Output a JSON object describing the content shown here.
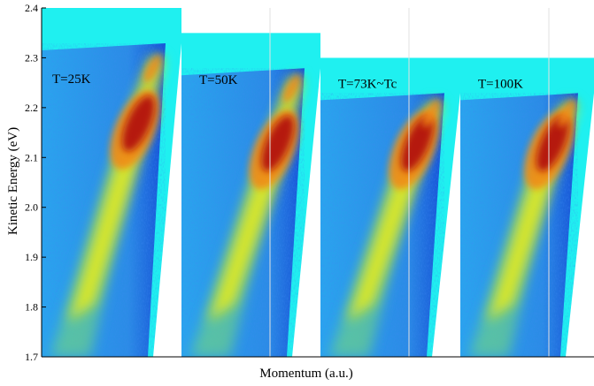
{
  "chart_data": {
    "type": "heatmap",
    "title": "",
    "xlabel": "Momentum (a.u.)",
    "ylabel": "Kinetic Energy (eV)",
    "ylim": [
      1.7,
      2.4
    ],
    "yticks": [
      "1.7",
      "1.8",
      "1.9",
      "2.0",
      "2.1",
      "2.2",
      "2.3",
      "2.4"
    ],
    "grid": true,
    "colormap": "jet",
    "colors": {
      "background": "#1ff0f0",
      "low": "#1a5fd0",
      "mid": "#f5f010",
      "high": "#b01010"
    },
    "panels": [
      {
        "label": "T=25K",
        "energy_max": 2.4,
        "peak_energy": 2.2,
        "band_top_energy": 2.3
      },
      {
        "label": "T=50K",
        "energy_max": 2.35,
        "peak_energy": 2.16,
        "band_top_energy": 2.26
      },
      {
        "label": "T=73K~Tc",
        "energy_max": 2.3,
        "peak_energy": 2.16,
        "band_top_energy": 2.21
      },
      {
        "label": "T=100K",
        "energy_max": 2.3,
        "peak_energy": 2.16,
        "band_top_energy": 2.21
      }
    ]
  }
}
